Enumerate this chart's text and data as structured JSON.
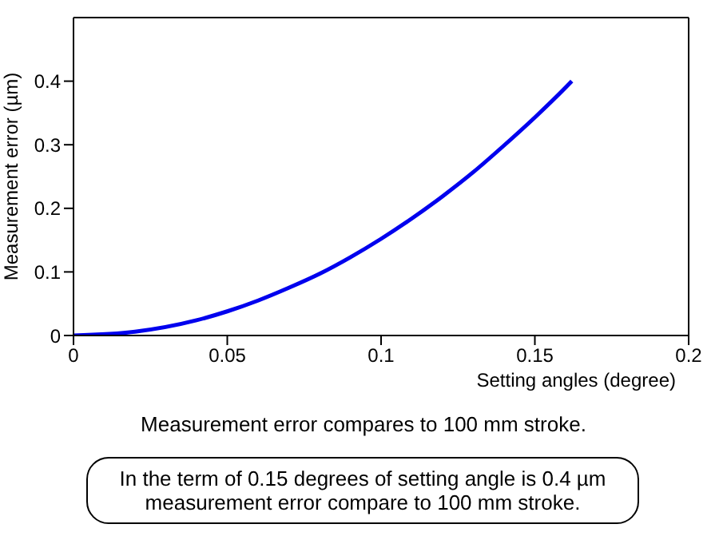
{
  "chart_data": {
    "type": "line",
    "xlabel": "Setting angles (degree)",
    "ylabel": "Measurement error (µm)",
    "x": [
      0,
      0.02,
      0.04,
      0.05,
      0.06,
      0.07,
      0.08,
      0.09,
      0.1,
      0.11,
      0.12,
      0.13,
      0.14,
      0.15,
      0.16,
      0.162
    ],
    "series": [
      {
        "color": "#0000ee",
        "values": [
          0,
          0.006,
          0.024,
          0.038,
          0.055,
          0.075,
          0.097,
          0.123,
          0.152,
          0.184,
          0.219,
          0.257,
          0.299,
          0.343,
          0.39,
          0.4
        ]
      }
    ],
    "xlim": [
      0,
      0.2
    ],
    "xticks": [
      0,
      0.05,
      0.1,
      0.15,
      0.2
    ],
    "ylim": [
      0,
      0.5
    ],
    "yticks": [
      0,
      0.1,
      0.2,
      0.3,
      0.4
    ],
    "marker": "none",
    "line_style": "solid",
    "annotations": [
      "Measurement error compares to 100 mm stroke.",
      "In the term of 0.15 degrees of setting angle is 0.4 µm measurement error compare to 100 mm stroke."
    ]
  }
}
